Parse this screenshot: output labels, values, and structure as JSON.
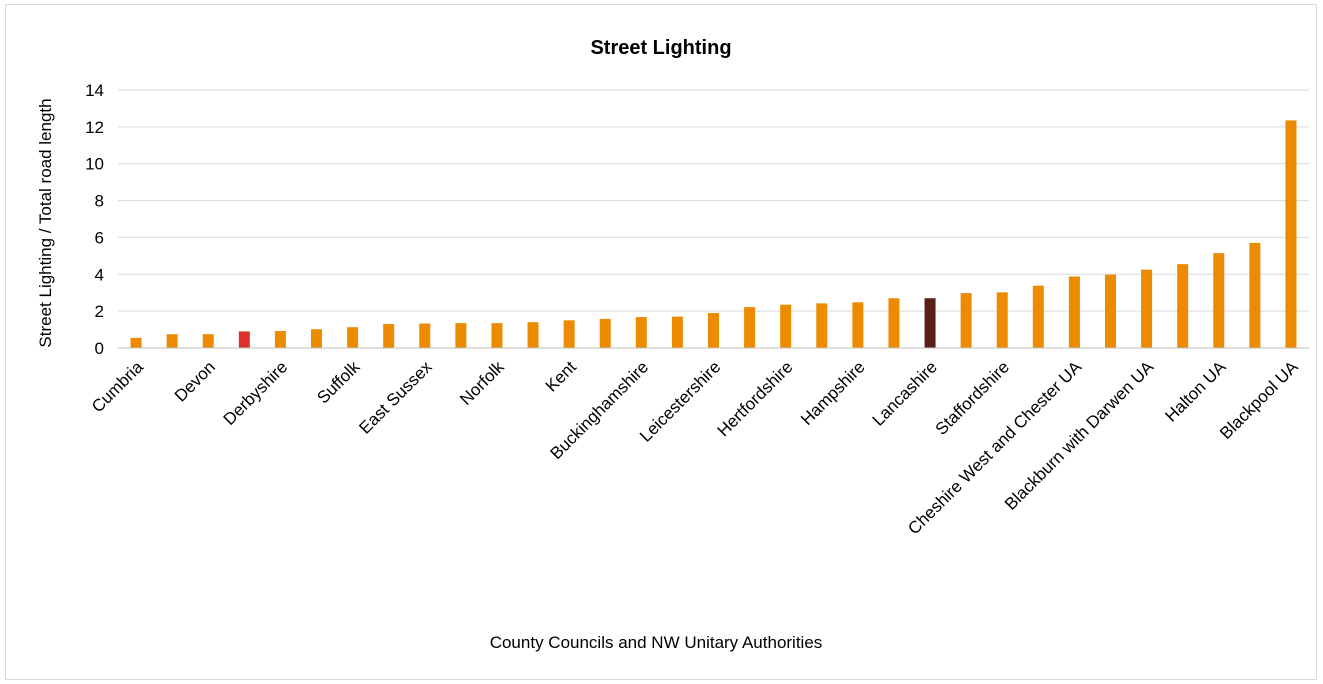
{
  "chart_data": {
    "type": "bar",
    "title": "Street Lighting",
    "xlabel": "County Councils and NW Unitary Authorities",
    "ylabel": "Street Lighting / Total road length",
    "ylim": [
      0,
      14
    ],
    "yticks": [
      0,
      2,
      4,
      6,
      8,
      10,
      12,
      14
    ],
    "grid": true,
    "legend": "none",
    "categories": [
      "Cumbria",
      "",
      "Devon",
      "",
      "Derbyshire",
      "",
      "Suffolk",
      "",
      "East Sussex",
      "",
      "Norfolk",
      "",
      "Kent",
      "",
      "Buckinghamshire",
      "",
      "Leicestershire",
      "",
      "Hertfordshire",
      "",
      "Hampshire",
      "",
      "Lancashire",
      "",
      "Staffordshire",
      "",
      "Cheshire West and Chester UA",
      "",
      "Blackburn with Darwen UA",
      "",
      "Halton UA",
      "",
      "Blackpool UA"
    ],
    "values": [
      0.55,
      0.75,
      0.75,
      0.9,
      0.92,
      1.02,
      1.13,
      1.3,
      1.33,
      1.35,
      1.35,
      1.4,
      1.5,
      1.58,
      1.68,
      1.7,
      1.9,
      2.22,
      2.35,
      2.42,
      2.48,
      2.7,
      2.7,
      2.98,
      3.02,
      3.38,
      3.88,
      3.98,
      4.25,
      4.55,
      5.15,
      5.7,
      12.35
    ],
    "bar_colors": [
      "#ed8b00",
      "#ed8b00",
      "#ed8b00",
      "#dc3129",
      "#ed8b00",
      "#ed8b00",
      "#ed8b00",
      "#ed8b00",
      "#ed8b00",
      "#ed8b00",
      "#ed8b00",
      "#ed8b00",
      "#ed8b00",
      "#ed8b00",
      "#ed8b00",
      "#ed8b00",
      "#ed8b00",
      "#ed8b00",
      "#ed8b00",
      "#ed8b00",
      "#ed8b00",
      "#ed8b00",
      "#5b1f1a",
      "#ed8b00",
      "#ed8b00",
      "#ed8b00",
      "#ed8b00",
      "#ed8b00",
      "#ed8b00",
      "#ed8b00",
      "#ed8b00",
      "#ed8b00",
      "#ed8b00"
    ],
    "colors": {
      "default": "#ed8b00",
      "highlight_1": "#dc3129",
      "highlight_2": "#5b1f1a",
      "grid": "#d9d9d9",
      "axis": "#bfbfbf"
    }
  }
}
